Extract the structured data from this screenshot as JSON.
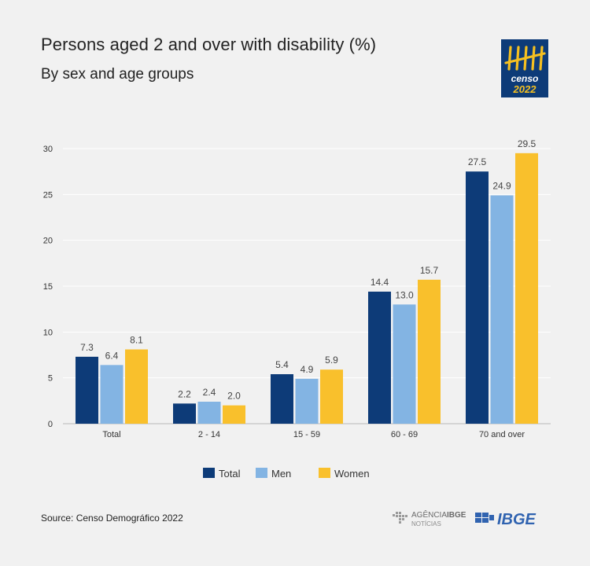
{
  "header": {
    "title": "Persons aged 2 and over with disability (%)",
    "subtitle": "By sex and age groups"
  },
  "logo": {
    "censo_text": "censo",
    "year_text": "2022",
    "background": "#0d3b78",
    "accent": "#f5c020"
  },
  "footer": {
    "source": "Source: Censo Demográfico 2022",
    "agencia_label": "AGÊNCIA",
    "agencia_brand": "IBGE",
    "agencia_sub": "NOTÍCIAS",
    "ibge_label": "IBGE"
  },
  "chart_data": {
    "type": "bar",
    "categories": [
      "Total",
      "2 - 14",
      "15 - 59",
      "60 - 69",
      "70 and over"
    ],
    "series": [
      {
        "name": "Total",
        "color": "#0d3b78",
        "values": [
          7.3,
          2.2,
          5.4,
          14.4,
          27.5
        ],
        "labels": [
          "7.3",
          "2.2",
          "5.4",
          "14.4",
          "27.5"
        ]
      },
      {
        "name": "Men",
        "color": "#83b4e3",
        "values": [
          6.4,
          2.4,
          4.9,
          13.0,
          24.9
        ],
        "labels": [
          "6.4",
          "2.4",
          "4.9",
          "13.0",
          "24.9"
        ]
      },
      {
        "name": "Women",
        "color": "#f9c02c",
        "values": [
          8.1,
          2.0,
          5.9,
          15.7,
          29.5
        ],
        "labels": [
          "8.1",
          "2.0",
          "5.9",
          "15.7",
          "29.5"
        ]
      }
    ],
    "yticks": [
      0,
      5,
      10,
      15,
      20,
      25,
      30
    ],
    "ylim": [
      0,
      30
    ],
    "grid": true,
    "legend": "bottom-center"
  }
}
